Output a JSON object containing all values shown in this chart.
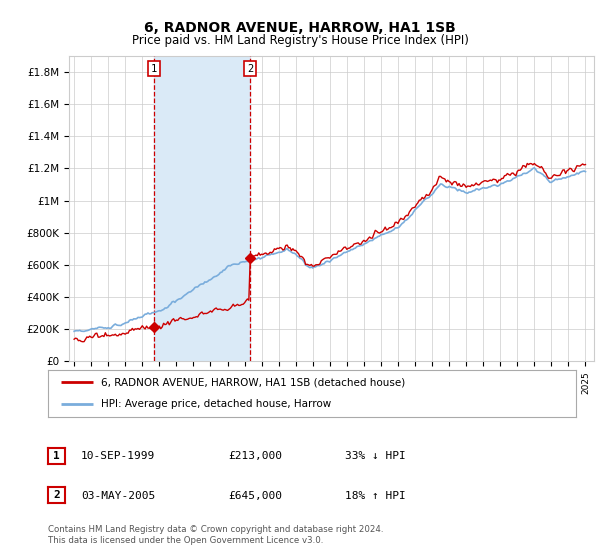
{
  "title": "6, RADNOR AVENUE, HARROW, HA1 1SB",
  "subtitle": "Price paid vs. HM Land Registry's House Price Index (HPI)",
  "title_fontsize": 10,
  "subtitle_fontsize": 8.5,
  "ylabel_ticks": [
    "£0",
    "£200K",
    "£400K",
    "£600K",
    "£800K",
    "£1M",
    "£1.2M",
    "£1.4M",
    "£1.6M",
    "£1.8M"
  ],
  "ytick_values": [
    0,
    200000,
    400000,
    600000,
    800000,
    1000000,
    1200000,
    1400000,
    1600000,
    1800000
  ],
  "ylim": [
    0,
    1900000
  ],
  "xlim_start": 1994.7,
  "xlim_end": 2025.5,
  "transaction1": {
    "date_num": 1999.69,
    "price": 213000,
    "label": "1"
  },
  "transaction2": {
    "date_num": 2005.33,
    "price": 645000,
    "label": "2"
  },
  "shade_start": 1999.69,
  "shade_end": 2005.33,
  "legend_line1": "6, RADNOR AVENUE, HARROW, HA1 1SB (detached house)",
  "legend_line2": "HPI: Average price, detached house, Harrow",
  "table_row1": [
    "1",
    "10-SEP-1999",
    "£213,000",
    "33% ↓ HPI"
  ],
  "table_row2": [
    "2",
    "03-MAY-2005",
    "£645,000",
    "18% ↑ HPI"
  ],
  "footnote": "Contains HM Land Registry data © Crown copyright and database right 2024.\nThis data is licensed under the Open Government Licence v3.0.",
  "hpi_color": "#7aaddc",
  "price_color": "#cc0000",
  "shade_color": "#daeaf7",
  "marker_color": "#cc0000",
  "grid_color": "#cccccc",
  "background_color": "#ffffff"
}
